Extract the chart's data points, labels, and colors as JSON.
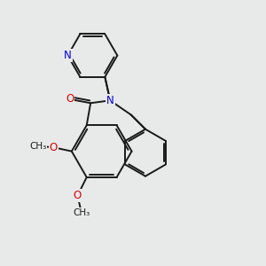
{
  "background_color": "#e8eaea",
  "bond_color": "#1a1a1a",
  "bond_width": 1.4,
  "atom_colors": {
    "N": "#0000ee",
    "O": "#dd0000",
    "C": "#1a1a1a"
  },
  "font_size_atom": 8.5,
  "font_size_methoxy": 7.5,
  "figsize": [
    3.0,
    3.0
  ],
  "dpi": 100,
  "xlim": [
    0,
    10
  ],
  "ylim": [
    0,
    10
  ]
}
